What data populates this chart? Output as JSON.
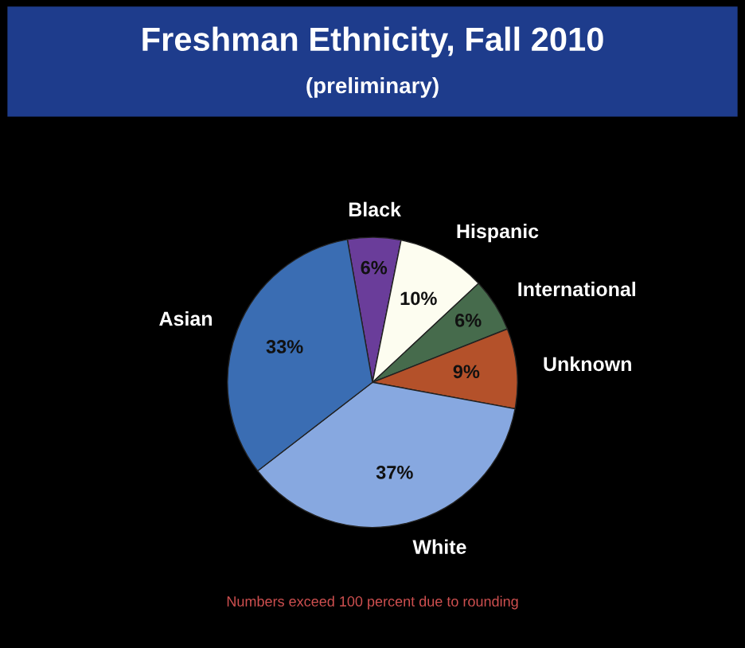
{
  "chart_data": {
    "type": "pie",
    "title": "Freshman Ethnicity, Fall 2010",
    "subtitle": "(preliminary)",
    "categories": [
      "Black",
      "Hispanic",
      "International",
      "Unknown",
      "White",
      "Asian"
    ],
    "values": [
      6,
      10,
      6,
      9,
      37,
      33
    ],
    "value_labels": [
      "6%",
      "10%",
      "6%",
      "9%",
      "37%",
      "33%"
    ],
    "colors": [
      "#6a3d9a",
      "#fdfdf0",
      "#466b4c",
      "#b4512a",
      "#87a8e0",
      "#3a6db3"
    ],
    "annotations": [
      "Numbers exceed 100 percent due to rounding"
    ],
    "legend": false
  }
}
